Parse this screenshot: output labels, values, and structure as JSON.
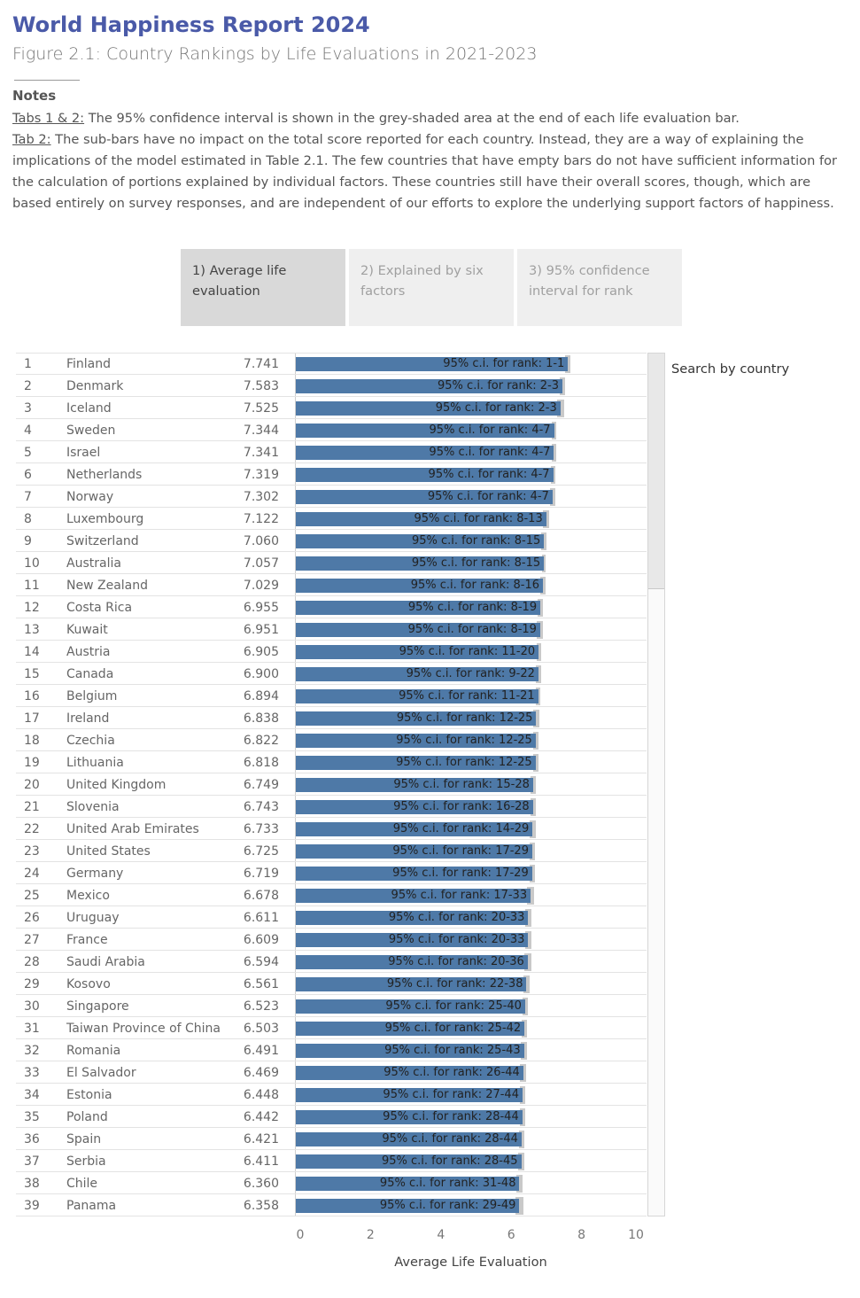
{
  "header": {
    "title": "World Happiness Report 2024",
    "subtitle": "Figure 2.1: Country Rankings by Life Evaluations in 2021-2023",
    "notes_heading": "Notes",
    "note1_label": "Tabs 1 & 2:",
    "note1_text": " The 95% confidence interval is shown in the grey-shaded area at the end of each life evaluation bar.",
    "note2_label": "Tab 2:",
    "note2_text": " The sub-bars have no impact on the total score reported for each country. Instead, they are a way of explaining the implications of the model estimated in Table 2.1. The few countries that have empty bars do not have sufficient information for the calculation of portions explained by individual factors. These countries still have their overall scores, though, which are based entirely on survey responses, and are independent of our efforts to explore the underlying support factors of happiness."
  },
  "tabs": [
    {
      "label": "1) Average life evaluation",
      "active": true
    },
    {
      "label": "2) Explained by six factors",
      "active": false
    },
    {
      "label": "3) 95% confidence interval for rank",
      "active": false
    }
  ],
  "search": {
    "label": "Search by country"
  },
  "colors": {
    "bar": "#4e79a7",
    "ci": "#c9c9c9",
    "title": "#4a5aa8",
    "active_tab": "#d9d9d9"
  },
  "chart_data": {
    "type": "bar",
    "orientation": "horizontal",
    "xlabel": "Average Life Evaluation",
    "xlim": [
      0,
      10
    ],
    "xticks": [
      "0",
      "2",
      "4",
      "6",
      "8",
      "10"
    ],
    "label_prefix": "95% c.i. for rank: ",
    "rows": [
      {
        "rank": "1",
        "country": "Finland",
        "score": "7.741",
        "value": 7.741,
        "ci": [
          7.67,
          7.81
        ],
        "rank_ci": "1-1"
      },
      {
        "rank": "2",
        "country": "Denmark",
        "score": "7.583",
        "value": 7.583,
        "ci": [
          7.51,
          7.65
        ],
        "rank_ci": "2-3"
      },
      {
        "rank": "3",
        "country": "Iceland",
        "score": "7.525",
        "value": 7.525,
        "ci": [
          7.43,
          7.62
        ],
        "rank_ci": "2-3"
      },
      {
        "rank": "4",
        "country": "Sweden",
        "score": "7.344",
        "value": 7.344,
        "ci": [
          7.28,
          7.41
        ],
        "rank_ci": "4-7"
      },
      {
        "rank": "5",
        "country": "Israel",
        "score": "7.341",
        "value": 7.341,
        "ci": [
          7.27,
          7.41
        ],
        "rank_ci": "4-7"
      },
      {
        "rank": "6",
        "country": "Netherlands",
        "score": "7.319",
        "value": 7.319,
        "ci": [
          7.25,
          7.38
        ],
        "rank_ci": "4-7"
      },
      {
        "rank": "7",
        "country": "Norway",
        "score": "7.302",
        "value": 7.302,
        "ci": [
          7.23,
          7.38
        ],
        "rank_ci": "4-7"
      },
      {
        "rank": "8",
        "country": "Luxembourg",
        "score": "7.122",
        "value": 7.122,
        "ci": [
          7.04,
          7.21
        ],
        "rank_ci": "8-13"
      },
      {
        "rank": "9",
        "country": "Switzerland",
        "score": "7.060",
        "value": 7.06,
        "ci": [
          6.98,
          7.14
        ],
        "rank_ci": "8-15"
      },
      {
        "rank": "10",
        "country": "Australia",
        "score": "7.057",
        "value": 7.057,
        "ci": [
          7.0,
          7.11
        ],
        "rank_ci": "8-15"
      },
      {
        "rank": "11",
        "country": "New Zealand",
        "score": "7.029",
        "value": 7.029,
        "ci": [
          6.95,
          7.1
        ],
        "rank_ci": "8-16"
      },
      {
        "rank": "12",
        "country": "Costa Rica",
        "score": "6.955",
        "value": 6.955,
        "ci": [
          6.87,
          7.04
        ],
        "rank_ci": "8-19"
      },
      {
        "rank": "13",
        "country": "Kuwait",
        "score": "6.951",
        "value": 6.951,
        "ci": [
          6.86,
          7.04
        ],
        "rank_ci": "8-19"
      },
      {
        "rank": "14",
        "country": "Austria",
        "score": "6.905",
        "value": 6.905,
        "ci": [
          6.84,
          6.97
        ],
        "rank_ci": "11-20"
      },
      {
        "rank": "15",
        "country": "Canada",
        "score": "6.900",
        "value": 6.9,
        "ci": [
          6.83,
          6.97
        ],
        "rank_ci": "9-22"
      },
      {
        "rank": "16",
        "country": "Belgium",
        "score": "6.894",
        "value": 6.894,
        "ci": [
          6.83,
          6.96
        ],
        "rank_ci": "11-21"
      },
      {
        "rank": "17",
        "country": "Ireland",
        "score": "6.838",
        "value": 6.838,
        "ci": [
          6.76,
          6.92
        ],
        "rank_ci": "12-25"
      },
      {
        "rank": "18",
        "country": "Czechia",
        "score": "6.822",
        "value": 6.822,
        "ci": [
          6.75,
          6.89
        ],
        "rank_ci": "12-25"
      },
      {
        "rank": "19",
        "country": "Lithuania",
        "score": "6.818",
        "value": 6.818,
        "ci": [
          6.74,
          6.9
        ],
        "rank_ci": "12-25"
      },
      {
        "rank": "20",
        "country": "United Kingdom",
        "score": "6.749",
        "value": 6.749,
        "ci": [
          6.68,
          6.82
        ],
        "rank_ci": "15-28"
      },
      {
        "rank": "21",
        "country": "Slovenia",
        "score": "6.743",
        "value": 6.743,
        "ci": [
          6.67,
          6.82
        ],
        "rank_ci": "16-28"
      },
      {
        "rank": "22",
        "country": "United Arab Emirates",
        "score": "6.733",
        "value": 6.733,
        "ci": [
          6.64,
          6.82
        ],
        "rank_ci": "14-29"
      },
      {
        "rank": "23",
        "country": "United States",
        "score": "6.725",
        "value": 6.725,
        "ci": [
          6.64,
          6.81
        ],
        "rank_ci": "17-29"
      },
      {
        "rank": "24",
        "country": "Germany",
        "score": "6.719",
        "value": 6.719,
        "ci": [
          6.64,
          6.8
        ],
        "rank_ci": "17-29"
      },
      {
        "rank": "25",
        "country": "Mexico",
        "score": "6.678",
        "value": 6.678,
        "ci": [
          6.58,
          6.77
        ],
        "rank_ci": "17-33"
      },
      {
        "rank": "26",
        "country": "Uruguay",
        "score": "6.611",
        "value": 6.611,
        "ci": [
          6.53,
          6.69
        ],
        "rank_ci": "20-33"
      },
      {
        "rank": "27",
        "country": "France",
        "score": "6.609",
        "value": 6.609,
        "ci": [
          6.53,
          6.69
        ],
        "rank_ci": "20-33"
      },
      {
        "rank": "28",
        "country": "Saudi Arabia",
        "score": "6.594",
        "value": 6.594,
        "ci": [
          6.5,
          6.69
        ],
        "rank_ci": "20-36"
      },
      {
        "rank": "29",
        "country": "Kosovo",
        "score": "6.561",
        "value": 6.561,
        "ci": [
          6.48,
          6.64
        ],
        "rank_ci": "22-38"
      },
      {
        "rank": "30",
        "country": "Singapore",
        "score": "6.523",
        "value": 6.523,
        "ci": [
          6.45,
          6.59
        ],
        "rank_ci": "25-40"
      },
      {
        "rank": "31",
        "country": "Taiwan Province of China",
        "score": "6.503",
        "value": 6.503,
        "ci": [
          6.43,
          6.57
        ],
        "rank_ci": "25-42"
      },
      {
        "rank": "32",
        "country": "Romania",
        "score": "6.491",
        "value": 6.491,
        "ci": [
          6.41,
          6.57
        ],
        "rank_ci": "25-43"
      },
      {
        "rank": "33",
        "country": "El Salvador",
        "score": "6.469",
        "value": 6.469,
        "ci": [
          6.38,
          6.56
        ],
        "rank_ci": "26-44"
      },
      {
        "rank": "34",
        "country": "Estonia",
        "score": "6.448",
        "value": 6.448,
        "ci": [
          6.38,
          6.52
        ],
        "rank_ci": "27-44"
      },
      {
        "rank": "35",
        "country": "Poland",
        "score": "6.442",
        "value": 6.442,
        "ci": [
          6.37,
          6.52
        ],
        "rank_ci": "28-44"
      },
      {
        "rank": "36",
        "country": "Spain",
        "score": "6.421",
        "value": 6.421,
        "ci": [
          6.35,
          6.49
        ],
        "rank_ci": "28-44"
      },
      {
        "rank": "37",
        "country": "Serbia",
        "score": "6.411",
        "value": 6.411,
        "ci": [
          6.32,
          6.5
        ],
        "rank_ci": "28-45"
      },
      {
        "rank": "38",
        "country": "Chile",
        "score": "6.360",
        "value": 6.36,
        "ci": [
          6.26,
          6.46
        ],
        "rank_ci": "31-48"
      },
      {
        "rank": "39",
        "country": "Panama",
        "score": "6.358",
        "value": 6.358,
        "ci": [
          6.24,
          6.48
        ],
        "rank_ci": "29-49"
      }
    ]
  }
}
